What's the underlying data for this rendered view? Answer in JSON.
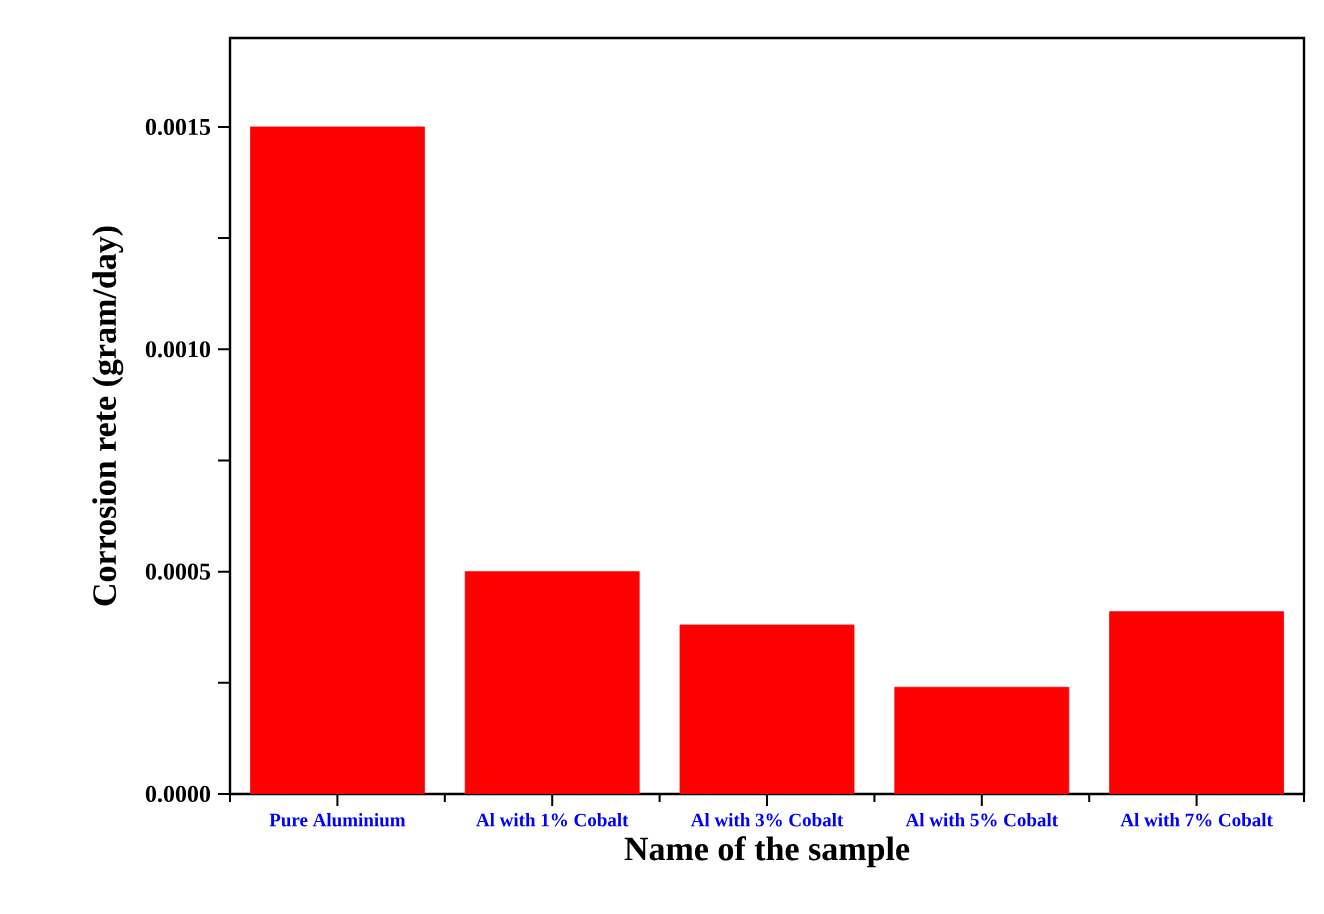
{
  "chart_data": {
    "type": "bar",
    "xlabel": "Name of the sample",
    "ylabel": "Corrosion rete (gram/day)",
    "categories": [
      "Pure Aluminium",
      "Al with 1% Cobalt",
      "Al with 3% Cobalt",
      "Al with 5% Cobalt",
      "Al with 7% Cobalt"
    ],
    "values": [
      0.0015,
      0.0005,
      0.00038,
      0.00024,
      0.00041
    ],
    "color": "#ff0000",
    "ylim": [
      0,
      0.0017
    ],
    "yticks": [
      {
        "value": 0,
        "label": "0.0000"
      },
      {
        "value": 0.00025,
        "label": null
      },
      {
        "value": 0.0005,
        "label": "0.0005"
      },
      {
        "value": 0.00075,
        "label": null
      },
      {
        "value": 0.001,
        "label": "0.0010"
      },
      {
        "value": 0.00125,
        "label": null
      },
      {
        "value": 0.0015,
        "label": "0.0015"
      }
    ],
    "grid": false
  }
}
